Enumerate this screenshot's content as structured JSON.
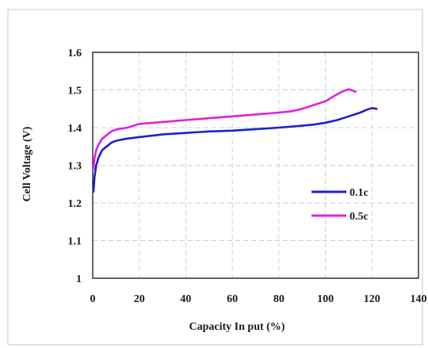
{
  "chart_data": {
    "type": "line",
    "title": "",
    "xlabel": "Capacity In put (%)",
    "ylabel": "Cell Voltage (V)",
    "xlim": [
      0,
      140
    ],
    "ylim": [
      1.0,
      1.6
    ],
    "xticks": [
      0,
      20,
      40,
      60,
      80,
      100,
      120,
      140
    ],
    "xtick_labels": [
      "0",
      "20",
      "40",
      "60",
      "80",
      "100",
      "120",
      "140"
    ],
    "yticks": [
      1.0,
      1.1,
      1.2,
      1.3,
      1.4,
      1.5,
      1.6
    ],
    "ytick_labels": [
      "1",
      "1.1",
      "1.2",
      "1.3",
      "1.4",
      "1.5",
      "1.6"
    ],
    "grid": true,
    "legend_position": "right",
    "series": [
      {
        "name": "0.1c",
        "color": "#1f1fd1",
        "x": [
          0.3,
          0.8,
          1.5,
          2.5,
          4,
          6,
          8,
          10,
          14,
          20,
          30,
          40,
          50,
          60,
          70,
          80,
          90,
          95,
          100,
          105,
          110,
          115,
          118,
          120,
          122
        ],
        "y": [
          1.23,
          1.27,
          1.3,
          1.32,
          1.34,
          1.35,
          1.36,
          1.365,
          1.37,
          1.375,
          1.382,
          1.386,
          1.39,
          1.392,
          1.396,
          1.4,
          1.405,
          1.408,
          1.413,
          1.42,
          1.43,
          1.44,
          1.448,
          1.452,
          1.45
        ]
      },
      {
        "name": "0.5c",
        "color": "#e020e0",
        "x": [
          0.3,
          0.8,
          1.5,
          2.5,
          4,
          6,
          8,
          10,
          15,
          20,
          30,
          40,
          50,
          60,
          70,
          80,
          85,
          90,
          95,
          100,
          104,
          107,
          109,
          110,
          111,
          112,
          113
        ],
        "y": [
          1.29,
          1.32,
          1.34,
          1.355,
          1.37,
          1.38,
          1.39,
          1.395,
          1.4,
          1.41,
          1.415,
          1.42,
          1.425,
          1.43,
          1.435,
          1.44,
          1.443,
          1.45,
          1.46,
          1.47,
          1.485,
          1.495,
          1.5,
          1.502,
          1.5,
          1.498,
          1.495
        ]
      }
    ]
  }
}
